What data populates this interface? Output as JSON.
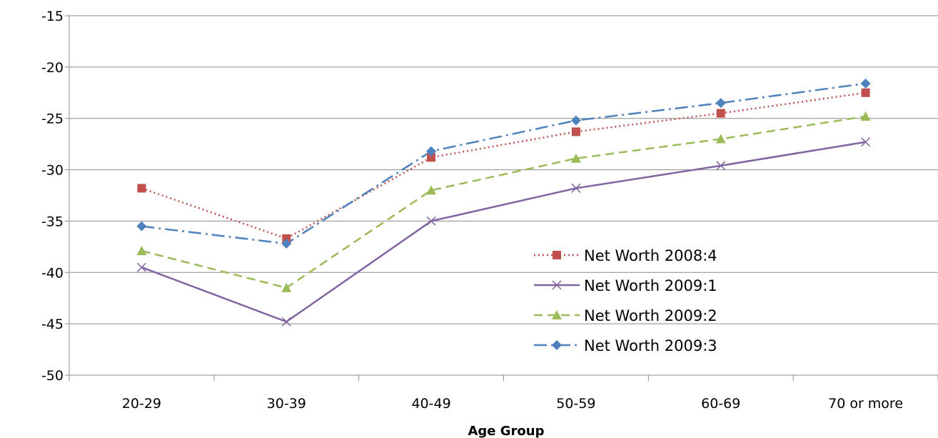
{
  "chart_data": {
    "type": "line",
    "title": "",
    "xlabel": "Age Group",
    "ylabel": "",
    "categories": [
      "20-29",
      "30-39",
      "40-49",
      "50-59",
      "60-69",
      "70 or more"
    ],
    "ylim": [
      -50,
      -15
    ],
    "yticks": [
      -15,
      -20,
      -25,
      -30,
      -35,
      -40,
      -45,
      -50
    ],
    "grid": true,
    "legend_position": "right-lower-inside",
    "series": [
      {
        "name": "Net Worth 2008:4",
        "values": [
          -31.8,
          -36.7,
          -28.8,
          -26.3,
          -24.5,
          -22.5
        ],
        "color": "#c0504d",
        "marker": "square",
        "dash": "dotted"
      },
      {
        "name": "Net Worth 2009:1",
        "values": [
          -39.5,
          -44.8,
          -35.0,
          -31.8,
          -29.6,
          -27.3
        ],
        "color": "#8064a2",
        "marker": "x",
        "dash": "solid"
      },
      {
        "name": "Net Worth 2009:2",
        "values": [
          -37.9,
          -41.5,
          -32.0,
          -28.9,
          -27.0,
          -24.8
        ],
        "color": "#9bbb59",
        "marker": "triangle",
        "dash": "dashed"
      },
      {
        "name": "Net Worth 2009:3",
        "values": [
          -35.5,
          -37.2,
          -28.2,
          -25.2,
          -23.5,
          -21.6
        ],
        "color": "#4f81bd",
        "marker": "diamond",
        "dash": "dashdot"
      }
    ]
  }
}
